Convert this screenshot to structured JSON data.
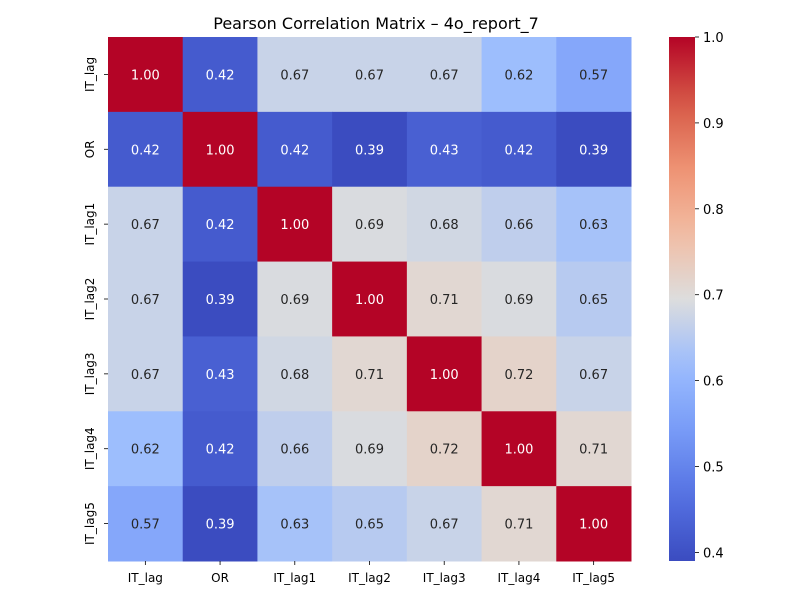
{
  "chart_data": {
    "type": "heatmap",
    "title": "Pearson Correlation Matrix – 4o_report_7",
    "xlabels": [
      "IT_lag",
      "OR",
      "IT_lag1",
      "IT_lag2",
      "IT_lag3",
      "IT_lag4",
      "IT_lag5"
    ],
    "ylabels": [
      "IT_lag",
      "OR",
      "IT_lag1",
      "IT_lag2",
      "IT_lag3",
      "IT_lag4",
      "IT_lag5"
    ],
    "values": [
      [
        1.0,
        0.42,
        0.67,
        0.67,
        0.67,
        0.62,
        0.57
      ],
      [
        0.42,
        1.0,
        0.42,
        0.39,
        0.43,
        0.42,
        0.39
      ],
      [
        0.67,
        0.42,
        1.0,
        0.69,
        0.68,
        0.66,
        0.63
      ],
      [
        0.67,
        0.39,
        0.69,
        1.0,
        0.71,
        0.69,
        0.65
      ],
      [
        0.67,
        0.43,
        0.68,
        0.71,
        1.0,
        0.72,
        0.67
      ],
      [
        0.62,
        0.42,
        0.66,
        0.69,
        0.72,
        1.0,
        0.71
      ],
      [
        0.57,
        0.39,
        0.63,
        0.65,
        0.67,
        0.71,
        1.0
      ]
    ],
    "value_format": "0.00",
    "colormap": "coolwarm",
    "vmin": 0.39,
    "vmax": 1.0,
    "colorbar_ticks": [
      "1.0",
      "0.9",
      "0.8",
      "0.7",
      "0.6",
      "0.5",
      "0.4"
    ],
    "colorbar_tick_values": [
      1.0,
      0.9,
      0.8,
      0.7,
      0.6,
      0.5,
      0.4
    ],
    "xlabel": "",
    "ylabel": ""
  }
}
